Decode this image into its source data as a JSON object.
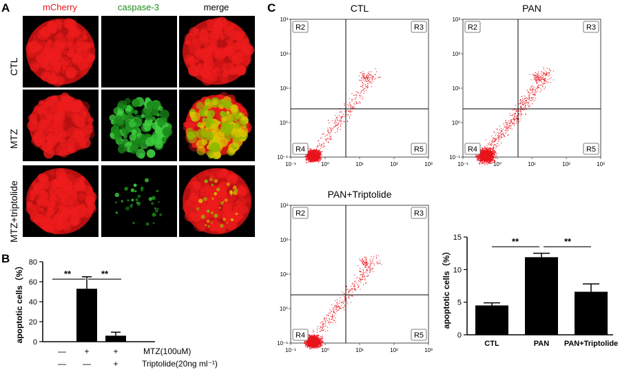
{
  "panel_a": {
    "letter": "A",
    "columns": [
      "mCherry",
      "caspase-3",
      "merge"
    ],
    "rows": [
      "CTL",
      "MTZ",
      "MTZ+triptolide"
    ],
    "colors": {
      "mcherry": "#ee1c1c",
      "caspase": "#1a8a1a"
    }
  },
  "panel_b": {
    "letter": "B",
    "chart_data": {
      "type": "bar",
      "ylabel": "apoptotic cells（%）",
      "ylim": [
        0,
        80
      ],
      "yticks": [
        "0",
        "20",
        "40",
        "60",
        "80"
      ],
      "values": [
        0,
        53,
        6
      ],
      "errors": [
        0,
        12,
        3.5
      ],
      "significance": [
        "**",
        "**"
      ],
      "conditions": [
        {
          "label": "MTZ(100uM)",
          "signs": [
            "—",
            "+",
            "+"
          ]
        },
        {
          "label": "Triptolide(20ng ml⁻¹)",
          "signs": [
            "—",
            "—",
            "+"
          ]
        }
      ]
    }
  },
  "panel_c": {
    "letter": "C",
    "plots": [
      {
        "title": "CTL",
        "regions": [
          "R2",
          "R3",
          "R4",
          "R5"
        ]
      },
      {
        "title": "PAN",
        "regions": [
          "R2",
          "R3",
          "R4",
          "R5"
        ]
      },
      {
        "title": "PAN+Triptolide",
        "regions": [
          "R2",
          "R3",
          "R4",
          "R5"
        ]
      }
    ],
    "axis_ticks": {
      "x": [
        "10⁻¹",
        "10⁰",
        "10¹",
        "10²",
        "10³"
      ],
      "y": [
        "10⁻¹",
        "10⁰",
        "10¹",
        "10²",
        "10³"
      ]
    },
    "chart_data": {
      "type": "bar",
      "categories": [
        "CTL",
        "PAN",
        "PAN+Triptolide"
      ],
      "values": [
        4.5,
        11.9,
        6.6
      ],
      "errors": [
        0.4,
        0.6,
        1.2
      ],
      "ylabel": "apoptotic cells（%）",
      "ylim": [
        0,
        15
      ],
      "yticks": [
        "0",
        "5",
        "10",
        "15"
      ],
      "significance": [
        "**",
        "**"
      ]
    }
  }
}
